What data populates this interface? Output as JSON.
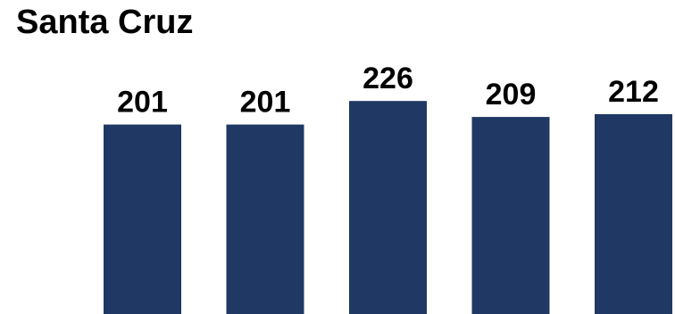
{
  "chart_data": {
    "type": "bar",
    "title": "Santa Cruz",
    "categories": [
      "",
      "",
      "",
      "",
      ""
    ],
    "values": [
      201,
      201,
      226,
      209,
      212
    ],
    "data_labels": [
      "201",
      "201",
      "226",
      "209",
      "212"
    ],
    "xlabel": "",
    "ylabel": "",
    "grid": false,
    "legend": "none",
    "bar_color": "#1f3864"
  }
}
